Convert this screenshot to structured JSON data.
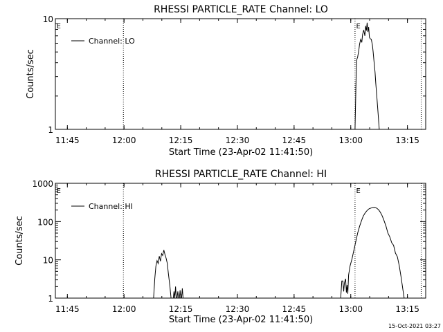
{
  "footer_timestamp": "15-Oct-2021 03:27",
  "chart_data": [
    {
      "type": "line",
      "title": "RHESSI PARTICLE_RATE Channel: LO",
      "xlabel": "Start Time (23-Apr-02 11:41:50)",
      "ylabel": "Counts/sec",
      "x_unit": "minutes since 11:41:50",
      "xlim": [
        0,
        98
      ],
      "yscale": "log",
      "ylim": [
        1,
        10
      ],
      "xticks": [
        {
          "x": 3.17,
          "label": "11:45"
        },
        {
          "x": 18.17,
          "label": "12:00"
        },
        {
          "x": 33.17,
          "label": "12:15"
        },
        {
          "x": 48.17,
          "label": "12:30"
        },
        {
          "x": 63.17,
          "label": "12:45"
        },
        {
          "x": 78.17,
          "label": "13:00"
        },
        {
          "x": 93.17,
          "label": "13:15"
        }
      ],
      "yticks": [
        {
          "y": 1,
          "label": "1"
        },
        {
          "y": 10,
          "label": "10"
        }
      ],
      "eclipse_lines": [
        18.0,
        79.3,
        96.8
      ],
      "eclipse_labels": [
        {
          "x": 0.3,
          "label": "E"
        },
        {
          "x": 79.6,
          "label": "E"
        }
      ],
      "legend": {
        "placement": "top-left",
        "entries": [
          "Channel: LO"
        ]
      },
      "series": [
        {
          "name": "Channel: LO",
          "x": [
            79.3,
            79.6,
            79.8,
            80.0,
            80.3,
            80.5,
            80.8,
            81.1,
            81.3,
            81.6,
            81.9,
            82.1,
            82.3,
            82.5,
            82.7,
            82.9,
            83.1,
            83.3,
            83.6,
            83.9,
            84.1,
            84.3,
            84.6,
            84.8,
            85.1,
            85.4,
            85.7
          ],
          "y": [
            1.0,
            3.2,
            4.3,
            4.5,
            5.2,
            5.9,
            6.5,
            6.1,
            7.2,
            7.9,
            7.0,
            8.6,
            7.8,
            9.2,
            7.6,
            8.4,
            6.8,
            6.6,
            6.5,
            5.8,
            5.0,
            4.2,
            3.3,
            2.6,
            1.9,
            1.4,
            1.0
          ]
        }
      ]
    },
    {
      "type": "line",
      "title": "RHESSI PARTICLE_RATE Channel: HI",
      "xlabel": "Start Time (23-Apr-02 11:41:50)",
      "ylabel": "Counts/sec",
      "x_unit": "minutes since 11:41:50",
      "xlim": [
        0,
        98
      ],
      "yscale": "log",
      "ylim": [
        1,
        1000
      ],
      "xticks": [
        {
          "x": 3.17,
          "label": "11:45"
        },
        {
          "x": 18.17,
          "label": "12:00"
        },
        {
          "x": 33.17,
          "label": "12:15"
        },
        {
          "x": 48.17,
          "label": "12:30"
        },
        {
          "x": 63.17,
          "label": "12:45"
        },
        {
          "x": 78.17,
          "label": "13:00"
        },
        {
          "x": 93.17,
          "label": "13:15"
        }
      ],
      "yticks": [
        {
          "y": 1,
          "label": "1"
        },
        {
          "y": 10,
          "label": "10"
        },
        {
          "y": 100,
          "label": "100"
        },
        {
          "y": 1000,
          "label": "1000"
        }
      ],
      "eclipse_lines": [
        18.0,
        79.3,
        96.8
      ],
      "eclipse_labels": [
        {
          "x": 0.3,
          "label": "E"
        },
        {
          "x": 79.6,
          "label": "E"
        }
      ],
      "legend": {
        "placement": "top-left",
        "entries": [
          "Channel: HI"
        ]
      },
      "series": [
        {
          "name": "Channel: HI",
          "x": [
            26.0,
            26.3,
            26.6,
            26.9,
            27.2,
            27.5,
            27.8,
            28.1,
            28.4,
            28.7,
            29.0,
            29.3,
            29.6,
            29.9,
            30.3,
            30.6,
            30.9,
            31.2,
            31.4,
            31.6,
            31.8,
            32.0,
            32.2,
            32.4,
            32.6,
            32.8,
            33.0,
            33.2,
            33.4,
            33.6,
            33.8,
            34.0,
            34.2,
            34.4
          ],
          "y": [
            1.0,
            3.2,
            6.8,
            9.5,
            8.0,
            12.5,
            9.2,
            14.5,
            13.0,
            18.0,
            13.8,
            11.0,
            8.2,
            4.5,
            2.1,
            1.0,
            1.0,
            1.0,
            1.5,
            1.0,
            2.0,
            1.0,
            1.0,
            1.5,
            1.0,
            1.0,
            1.6,
            1.0,
            1.0,
            1.8,
            1.0,
            1.0,
            1.0,
            1.0
          ]
        },
        {
          "name": "Channel: HI",
          "x": [
            75.5,
            75.8,
            76.1,
            76.3,
            76.5,
            76.8,
            77.0,
            77.2,
            77.4,
            77.6,
            78.0,
            78.5,
            79.0,
            79.5,
            80.0,
            80.5,
            81.0,
            81.5,
            82.0,
            82.5,
            83.0,
            83.5,
            84.0,
            84.5,
            85.0,
            85.5,
            86.0,
            86.5,
            87.0,
            87.5,
            88.0,
            88.5,
            89.0,
            89.5,
            90.0,
            90.5,
            91.0,
            91.5,
            92.0,
            92.3
          ],
          "y": [
            1.0,
            2.8,
            2.8,
            1.5,
            2.5,
            3.2,
            1.4,
            2.2,
            1.3,
            4.0,
            7.0,
            10.5,
            18.0,
            30.0,
            50.0,
            75.0,
            105.0,
            140.0,
            170.0,
            195.0,
            215.0,
            225.0,
            230.0,
            232.0,
            225.0,
            205.0,
            175.0,
            140.0,
            105.0,
            75.0,
            50.0,
            40.0,
            28.0,
            24.0,
            15.0,
            12.0,
            7.0,
            3.5,
            1.6,
            1.0
          ]
        }
      ]
    }
  ]
}
